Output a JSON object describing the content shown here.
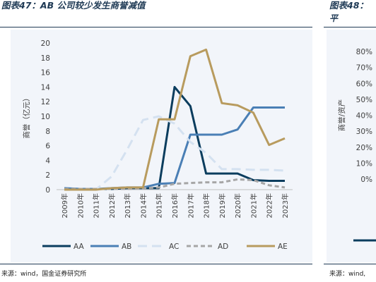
{
  "left_figure": {
    "title": "图表47：AB 公司较少发生商誉减值",
    "source": "来源：wind，国金证券研究所"
  },
  "right_figure": {
    "title_line1": "图表48：",
    "title_line2": "平",
    "source": "来源：wind,"
  },
  "chart_data": [
    {
      "type": "line",
      "title": "",
      "xlabel": "",
      "ylabel": "商誉（亿元）",
      "ylim": [
        0,
        20
      ],
      "yticks": [
        0,
        2,
        4,
        6,
        8,
        10,
        12,
        14,
        16,
        18,
        20
      ],
      "grid": false,
      "legend_position": "bottom",
      "categories": [
        "2009年",
        "2010年",
        "2011年",
        "2012年",
        "2013年",
        "2014年",
        "2015年",
        "2016年",
        "2017年",
        "2018年",
        "2019年",
        "2020年",
        "2021年",
        "2022年",
        "2023年"
      ],
      "series": [
        {
          "name": "AA",
          "color": "#0b3d5e",
          "dash": "solid",
          "values": [
            0.1,
            0.1,
            0.1,
            0.1,
            0.2,
            0.2,
            0.2,
            14.0,
            11.4,
            2.2,
            2.2,
            2.2,
            1.3,
            1.2,
            1.2
          ]
        },
        {
          "name": "AB",
          "color": "#4a7fb5",
          "dash": "solid",
          "values": [
            0.2,
            0.1,
            0.1,
            0.2,
            0.3,
            0.3,
            0.8,
            0.9,
            7.5,
            7.5,
            7.5,
            8.2,
            11.2,
            11.2,
            11.2
          ]
        },
        {
          "name": "AC",
          "color": "#d4e1f0",
          "dash": "long",
          "values": [
            0.0,
            0.0,
            0.0,
            1.8,
            5.5,
            9.5,
            10.0,
            9.0,
            6.5,
            5.0,
            2.8,
            2.8,
            2.7,
            2.7,
            2.6
          ]
        },
        {
          "name": "AD",
          "color": "#a6a6a6",
          "dash": "short",
          "values": [
            0.1,
            0.1,
            0.1,
            0.1,
            0.1,
            0.2,
            0.3,
            0.8,
            0.9,
            1.0,
            1.0,
            1.4,
            1.3,
            0.6,
            0.3
          ]
        },
        {
          "name": "AE",
          "color": "#b89b5e",
          "dash": "solid",
          "values": [
            0.0,
            0.0,
            0.0,
            0.2,
            0.3,
            0.3,
            9.6,
            9.6,
            18.2,
            19.1,
            11.8,
            11.5,
            10.5,
            6.1,
            7.0
          ]
        }
      ]
    },
    {
      "type": "line",
      "title": "",
      "xlabel": "",
      "ylabel": "商誉/资产",
      "yticks": [
        "0%",
        "10%",
        "20%",
        "30%",
        "40%",
        "50%",
        "60%",
        "70%",
        "80%"
      ],
      "partial": true
    }
  ]
}
